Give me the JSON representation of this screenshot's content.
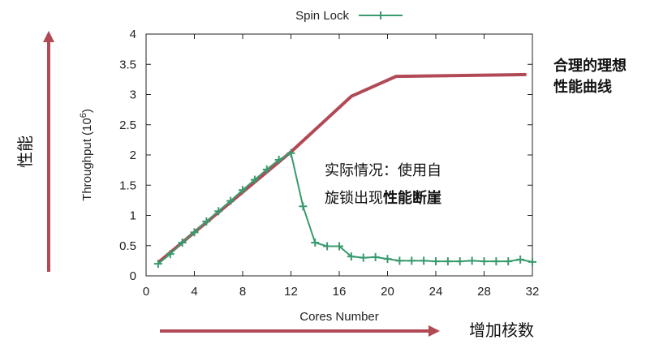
{
  "chart_data": {
    "type": "line",
    "xlabel": "Cores Number",
    "ylabel": "Throughput (10",
    "ylabel_sup": "6",
    "ylabel_close": ")",
    "xlim": [
      0,
      32
    ],
    "ylim": [
      0,
      4
    ],
    "xticks": [
      0,
      4,
      8,
      12,
      16,
      20,
      24,
      28,
      32
    ],
    "yticks": [
      "0",
      "0.5",
      "1",
      "1.5",
      "2",
      "2.5",
      "3",
      "3.5",
      "4"
    ],
    "ytick_values": [
      0,
      0.5,
      1,
      1.5,
      2,
      2.5,
      3,
      3.5,
      4
    ],
    "grid": false,
    "legend_position": "top-center",
    "series": [
      {
        "name": "Spin Lock",
        "color": "#3a9a6e",
        "marker": "plus",
        "x": [
          1,
          2,
          3,
          4,
          5,
          6,
          7,
          8,
          9,
          10,
          11,
          12,
          13,
          14,
          15,
          16,
          17,
          18,
          19,
          20,
          21,
          22,
          23,
          24,
          25,
          26,
          27,
          28,
          29,
          30,
          31,
          32
        ],
        "y": [
          0.2,
          0.36,
          0.55,
          0.72,
          0.9,
          1.07,
          1.24,
          1.42,
          1.59,
          1.76,
          1.92,
          2.03,
          1.15,
          0.55,
          0.49,
          0.49,
          0.32,
          0.3,
          0.31,
          0.28,
          0.25,
          0.25,
          0.25,
          0.24,
          0.24,
          0.24,
          0.25,
          0.24,
          0.24,
          0.24,
          0.27,
          0.23
        ]
      },
      {
        "name": "ideal",
        "color": "#b24a56",
        "marker": "none",
        "x": [
          1,
          12,
          17,
          20.7,
          31.5
        ],
        "y": [
          0.22,
          2.05,
          2.97,
          3.3,
          3.33
        ]
      }
    ]
  },
  "annotations": {
    "ideal_line1": "合理的理想",
    "ideal_line2": "性能曲线",
    "actual_line1": "实际情况：使用自",
    "actual_line2_a": "旋锁出现",
    "actual_line2_b": "性能断崖",
    "y_arrow_label": "性能",
    "x_arrow_label": "增加核数"
  },
  "colors": {
    "arrow": "#b24a56",
    "axis": "#222222"
  }
}
